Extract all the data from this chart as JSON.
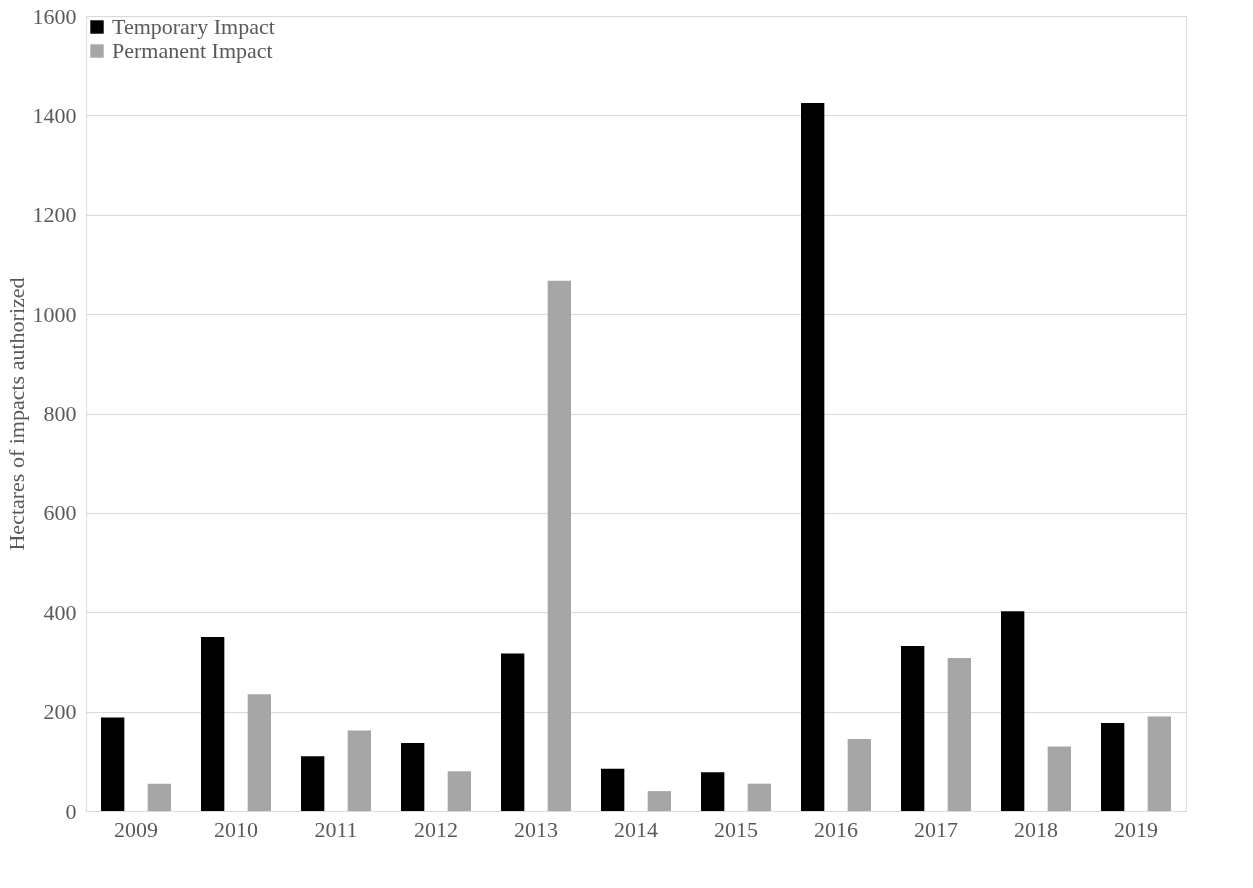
{
  "chart_data": {
    "type": "bar",
    "ylabel": "Hectares of impacts authorized",
    "categories": [
      "2009",
      "2010",
      "2011",
      "2012",
      "2013",
      "2014",
      "2015",
      "2016",
      "2017",
      "2018",
      "2019"
    ],
    "series": [
      {
        "name": "Temporary Impact",
        "color": "#000000",
        "values": [
          188,
          350,
          110,
          137,
          317,
          85,
          78,
          1425,
          332,
          402,
          177
        ]
      },
      {
        "name": "Permanent Impact",
        "color": "#a6a6a6",
        "values": [
          55,
          235,
          162,
          80,
          1067,
          40,
          55,
          145,
          308,
          130,
          190
        ]
      }
    ],
    "ylim": [
      0,
      1600
    ],
    "yticks": [
      0,
      200,
      400,
      600,
      800,
      1000,
      1200,
      1400,
      1600
    ],
    "grid": "y",
    "legend": "top left"
  }
}
